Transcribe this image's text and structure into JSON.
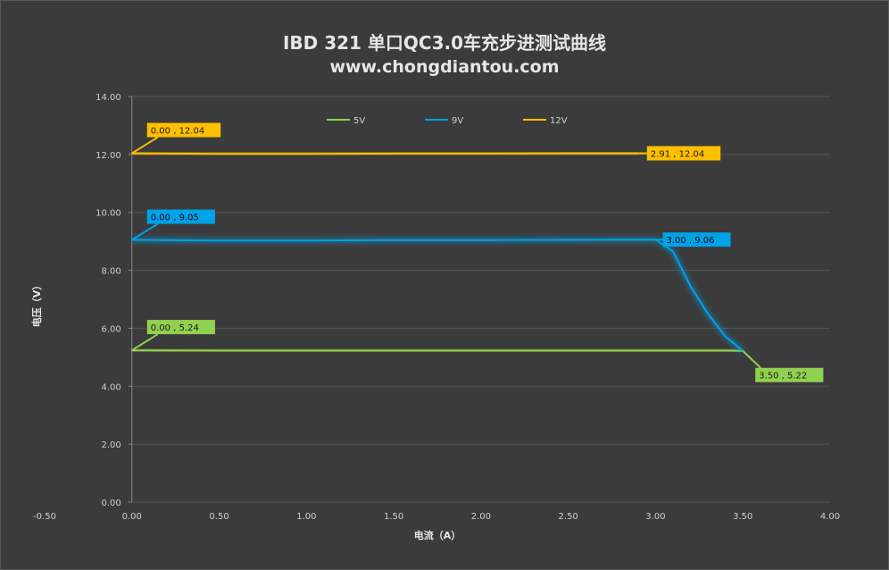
{
  "title": "IBD 321 单口QC3.0车充步进测试曲线",
  "subtitle": "www.chongdiantou.com",
  "chart_data": {
    "type": "line",
    "xlabel": "电流（A）",
    "ylabel": "电压（V）",
    "xlim": [
      -0.5,
      4.0
    ],
    "ylim": [
      0,
      14
    ],
    "x_ticks": [
      "-0.50",
      "0.00",
      "0.50",
      "1.00",
      "1.50",
      "2.00",
      "2.50",
      "3.00",
      "3.50",
      "4.00"
    ],
    "y_ticks": [
      "0.00",
      "2.00",
      "4.00",
      "6.00",
      "8.00",
      "10.00",
      "12.00",
      "14.00"
    ],
    "grid": "horizontal",
    "legend_position": "top",
    "series": [
      {
        "name": "5V",
        "color": "#92d050",
        "points": [
          [
            0.0,
            5.24
          ],
          [
            0.5,
            5.23
          ],
          [
            1.0,
            5.23
          ],
          [
            1.5,
            5.23
          ],
          [
            2.0,
            5.23
          ],
          [
            2.5,
            5.23
          ],
          [
            3.0,
            5.23
          ],
          [
            3.4,
            5.23
          ],
          [
            3.5,
            5.22
          ]
        ],
        "labels": [
          {
            "text": "0.00 , 5.24",
            "anchor": [
              0.0,
              5.24
            ],
            "at": "start"
          },
          {
            "text": "3.50 , 5.22",
            "anchor": [
              3.5,
              5.22
            ],
            "at": "end"
          }
        ]
      },
      {
        "name": "9V",
        "color": "#00a2e8",
        "points": [
          [
            0.0,
            9.05
          ],
          [
            0.5,
            9.03
          ],
          [
            1.0,
            9.03
          ],
          [
            1.5,
            9.04
          ],
          [
            2.0,
            9.04
          ],
          [
            2.5,
            9.05
          ],
          [
            3.0,
            9.06
          ],
          [
            3.1,
            8.65
          ],
          [
            3.2,
            7.45
          ],
          [
            3.3,
            6.5
          ],
          [
            3.4,
            5.72
          ],
          [
            3.5,
            5.22
          ]
        ],
        "labels": [
          {
            "text": "0.00 , 9.05",
            "anchor": [
              0.0,
              9.05
            ],
            "at": "start"
          },
          {
            "text": "3.00 , 9.06",
            "anchor": [
              3.0,
              9.06
            ],
            "at": "end"
          }
        ]
      },
      {
        "name": "12V",
        "color": "#ffc000",
        "points": [
          [
            0.0,
            12.04
          ],
          [
            0.5,
            12.02
          ],
          [
            1.0,
            12.02
          ],
          [
            1.5,
            12.03
          ],
          [
            2.0,
            12.03
          ],
          [
            2.5,
            12.04
          ],
          [
            2.91,
            12.04
          ]
        ],
        "labels": [
          {
            "text": "0.00 , 12.04",
            "anchor": [
              0.0,
              12.04
            ],
            "at": "start"
          },
          {
            "text": "2.91 , 12.04",
            "anchor": [
              2.91,
              12.04
            ],
            "at": "end"
          }
        ]
      }
    ]
  }
}
